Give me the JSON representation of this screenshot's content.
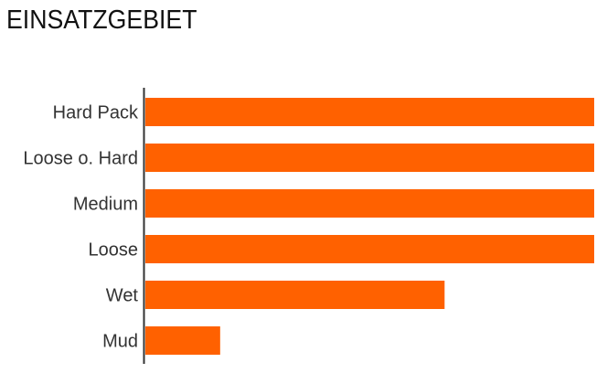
{
  "chart_data": {
    "type": "bar",
    "orientation": "horizontal",
    "title": "EINSATZGEBIET",
    "categories": [
      "Hard Pack",
      "Loose o. Hard",
      "Medium",
      "Loose",
      "Wet",
      "Mud"
    ],
    "values": [
      6,
      6,
      6,
      6,
      4,
      1
    ],
    "xlim": [
      0,
      6
    ],
    "grid": false,
    "bar_color": "#ff6100"
  }
}
